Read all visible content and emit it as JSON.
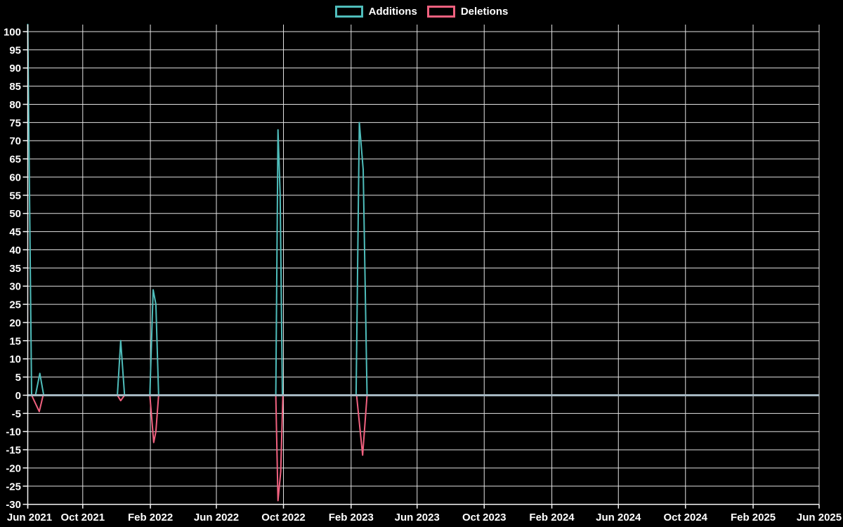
{
  "legend": {
    "items": [
      {
        "label": "Additions",
        "color": "#4fbdbb"
      },
      {
        "label": "Deletions",
        "color": "#f0617f"
      }
    ]
  },
  "chart_data": {
    "type": "line",
    "title": "",
    "background": "#000000",
    "grid": true,
    "legend_position": "top-center",
    "grid_color": "#e2e2e2",
    "axis_color": "#f5f5f5",
    "zero_line_color": "#a6b8c2",
    "text_color": "#ffffff",
    "series": [
      {
        "name": "Additions",
        "color": "#4fbdbb",
        "points": [
          [
            "2021-06-23",
            102
          ],
          [
            "2021-06-30",
            0
          ],
          [
            "2021-07-07",
            0
          ],
          [
            "2021-07-15",
            6
          ],
          [
            "2021-07-22",
            0
          ],
          [
            "2021-12-03",
            0
          ],
          [
            "2021-12-09",
            15
          ],
          [
            "2021-12-16",
            0
          ],
          [
            "2022-01-31",
            0
          ],
          [
            "2022-02-06",
            29
          ],
          [
            "2022-02-11",
            25
          ],
          [
            "2022-02-16",
            0
          ],
          [
            "2022-09-17",
            0
          ],
          [
            "2022-09-21",
            73
          ],
          [
            "2022-09-25",
            55
          ],
          [
            "2022-09-29",
            0
          ],
          [
            "2023-02-10",
            0
          ],
          [
            "2023-02-16",
            75
          ],
          [
            "2023-02-23",
            62
          ],
          [
            "2023-03-02",
            0
          ]
        ]
      },
      {
        "name": "Deletions",
        "color": "#f0617f",
        "points": [
          [
            "2021-06-23",
            0
          ],
          [
            "2021-06-30",
            0
          ],
          [
            "2021-07-14",
            -4.5
          ],
          [
            "2021-07-21",
            0
          ],
          [
            "2021-12-03",
            0
          ],
          [
            "2021-12-09",
            -1.5
          ],
          [
            "2021-12-16",
            0
          ],
          [
            "2022-01-31",
            0
          ],
          [
            "2022-02-07",
            -13
          ],
          [
            "2022-02-11",
            -10
          ],
          [
            "2022-02-16",
            0
          ],
          [
            "2022-09-17",
            0
          ],
          [
            "2022-09-21",
            -29
          ],
          [
            "2022-09-26",
            -21
          ],
          [
            "2022-09-30",
            0
          ],
          [
            "2023-02-11",
            0
          ],
          [
            "2023-02-22",
            -16.5
          ],
          [
            "2023-03-02",
            0
          ]
        ]
      }
    ],
    "x_axis": {
      "type": "date",
      "start": "2021-06-23",
      "end": "2025-06-01",
      "ticks": [
        {
          "label": "Jun 2021",
          "date": "2021-06-01"
        },
        {
          "label": "Oct 2021",
          "date": "2021-10-01"
        },
        {
          "label": "Feb 2022",
          "date": "2022-02-01"
        },
        {
          "label": "Jun 2022",
          "date": "2022-06-01"
        },
        {
          "label": "Oct 2022",
          "date": "2022-10-01"
        },
        {
          "label": "Feb 2023",
          "date": "2023-02-01"
        },
        {
          "label": "Jun 2023",
          "date": "2023-06-01"
        },
        {
          "label": "Oct 2023",
          "date": "2023-10-01"
        },
        {
          "label": "Feb 2024",
          "date": "2024-02-01"
        },
        {
          "label": "Jun 2024",
          "date": "2024-06-01"
        },
        {
          "label": "Oct 2024",
          "date": "2024-10-01"
        },
        {
          "label": "Feb 2025",
          "date": "2025-02-01"
        },
        {
          "label": "Jun 2025",
          "date": "2025-06-01"
        }
      ]
    },
    "y_axis": {
      "min": -30,
      "max": 100,
      "step": 5,
      "labels": [
        "100",
        "95",
        "90",
        "85",
        "80",
        "75",
        "70",
        "65",
        "60",
        "55",
        "50",
        "45",
        "40",
        "35",
        "30",
        "25",
        "20",
        "15",
        "10",
        "5",
        "0",
        "-5",
        "-10",
        "-15",
        "-20",
        "-25",
        "-30"
      ]
    }
  }
}
